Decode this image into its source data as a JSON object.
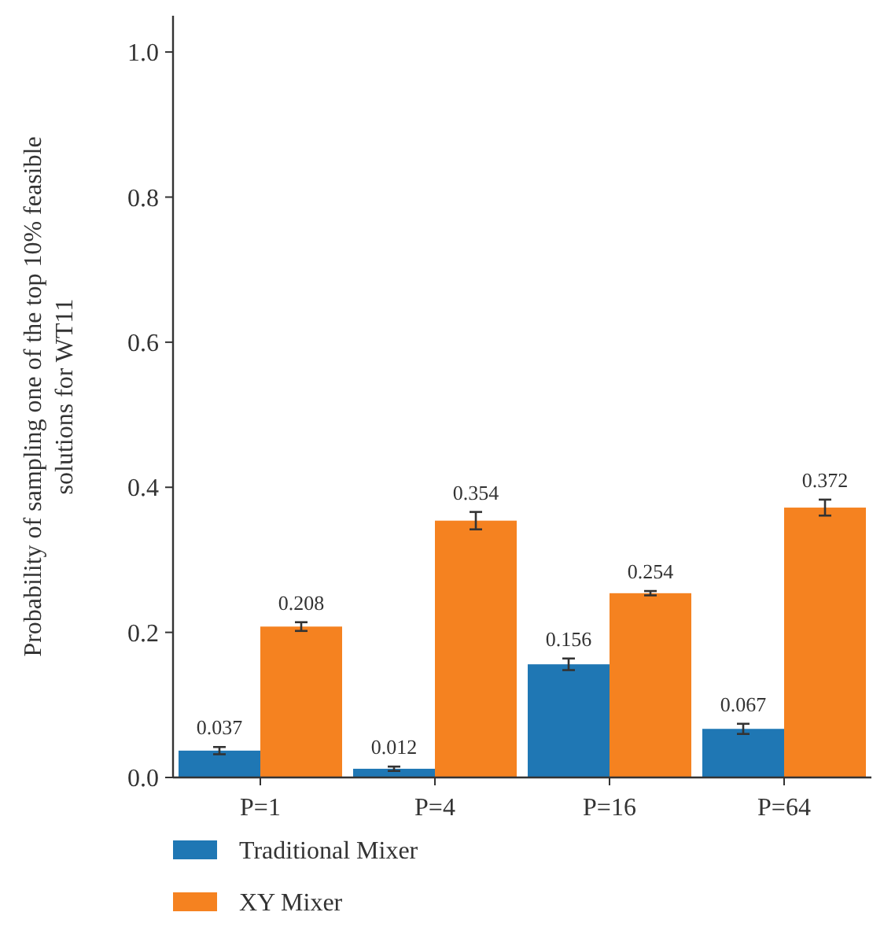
{
  "chart_data": {
    "type": "bar",
    "ylabel": "Probability of sampling one of the top 10% feasible\nsolutions for WT11",
    "categories": [
      "P=1",
      "P=4",
      "P=16",
      "P=64"
    ],
    "series": [
      {
        "name": "Traditional Mixer",
        "color": "#1f77b4",
        "values": [
          0.037,
          0.012,
          0.156,
          0.067
        ],
        "errors": [
          0.005,
          0.003,
          0.008,
          0.007
        ]
      },
      {
        "name": "XY Mixer",
        "color": "#f58220",
        "values": [
          0.208,
          0.354,
          0.254,
          0.372
        ],
        "errors": [
          0.006,
          0.012,
          0.003,
          0.011
        ]
      }
    ],
    "ylim": [
      0,
      1.05
    ],
    "yticks": [
      {
        "value": 0,
        "label": "0.0"
      },
      0.2,
      0.4,
      0.6,
      0.8,
      {
        "value": 1,
        "label": "1.0"
      }
    ],
    "data_labels": true,
    "legend": "bottom left",
    "grid": false
  }
}
